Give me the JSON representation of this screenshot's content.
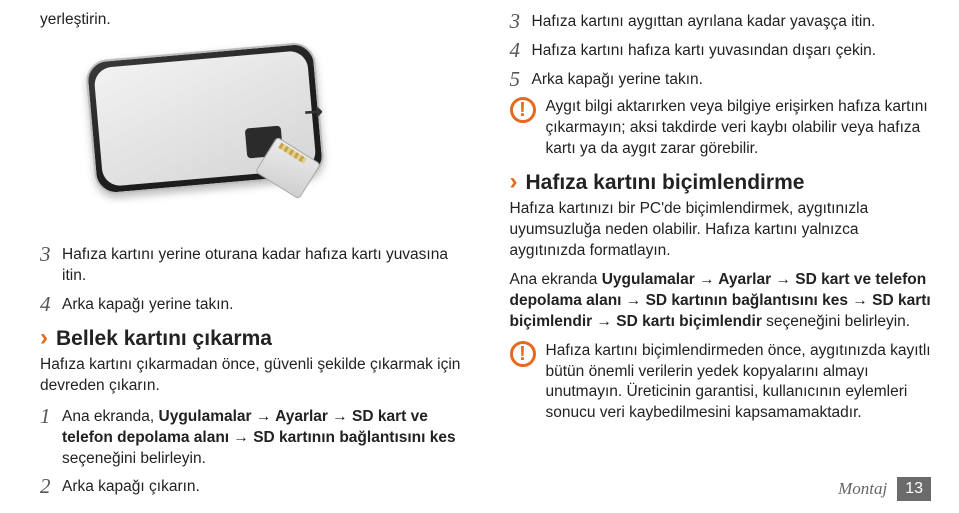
{
  "left": {
    "top_word": "yerleştirin.",
    "step3": "Hafıza kartını yerine oturana kadar hafıza kartı yuvasına itin.",
    "step4": "Arka kapağı yerine takın.",
    "section1_title": "Bellek kartını çıkarma",
    "section1_intro": "Hafıza kartını çıkarmadan önce, güvenli şekilde çıkarmak için devreden çıkarın.",
    "s1_step1_pre": "Ana ekranda, ",
    "s1_step1_bold": "Uygulamalar → Ayarlar → SD kart ve telefon depolama alanı → SD kartının bağlantısını kes",
    "s1_step1_post": " seçeneğini belirleyin.",
    "s1_step2": "Arka kapağı çıkarın."
  },
  "right": {
    "step3": "Hafıza kartını aygıttan ayrılana kadar yavaşça itin.",
    "step4": "Hafıza kartını hafıza kartı yuvasından dışarı çekin.",
    "step5": "Arka kapağı yerine takın.",
    "warn1": "Aygıt bilgi aktarırken veya bilgiye erişirken hafıza kartını çıkarmayın; aksi takdirde veri kaybı olabilir veya hafıza kartı ya da aygıt zarar görebilir.",
    "section2_title": "Hafıza kartını biçimlendirme",
    "section2_intro": "Hafıza kartınızı bir PC'de biçimlendirmek, aygıtınızla uyumsuzluğa neden olabilir. Hafıza kartını yalnızca aygıtınızda formatlayın.",
    "s2_line_pre": "Ana ekranda ",
    "s2_line_bold": "Uygulamalar → Ayarlar → SD kart ve telefon depolama alanı → SD kartının bağlantısını kes → SD kartı biçimlendir → SD kartı biçimlendir",
    "s2_line_post": " seçeneğini belirleyin.",
    "warn2": "Hafıza kartını biçimlendirmeden önce, aygıtınızda kayıtlı bütün önemli verilerin yedek kopyalarını almayı unutmayın. Üreticinin garantisi, kullanıcının eylemleri sonucu veri kaybedilmesini kapsamamaktadır."
  },
  "footer": {
    "label": "Montaj",
    "page": "13"
  },
  "nums": {
    "n1": "1",
    "n2": "2",
    "n3": "3",
    "n4": "4",
    "n5": "5"
  },
  "icons": {
    "warn_glyph": "!",
    "chevron": "›",
    "arrow": "↘"
  }
}
